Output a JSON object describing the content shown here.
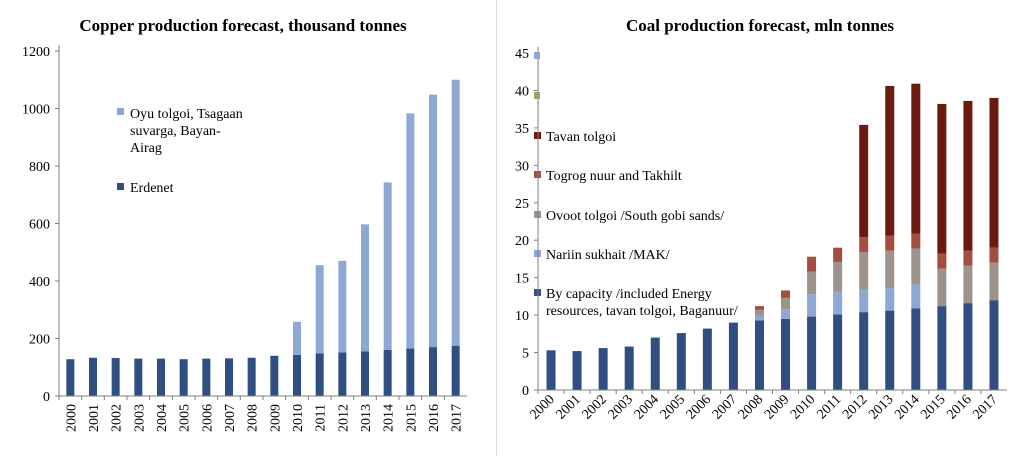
{
  "chart_data": [
    {
      "type": "bar",
      "stacked": true,
      "title": "Copper production forecast, thousand tonnes",
      "categories": [
        "2000",
        "2001",
        "2002",
        "2003",
        "2004",
        "2005",
        "2006",
        "2007",
        "2008",
        "2009",
        "2010",
        "2011",
        "2012",
        "2013",
        "2014",
        "2015",
        "2016",
        "2017"
      ],
      "ylim": [
        0,
        1200
      ],
      "yticks": [
        "0",
        "200",
        "400",
        "600",
        "800",
        "1000",
        "1200"
      ],
      "legend_position": "upper-left inside",
      "series": [
        {
          "name": "Erdenet",
          "color": "#2F4F80",
          "values": [
            128,
            133,
            132,
            130,
            130,
            128,
            130,
            131,
            133,
            140,
            143,
            148,
            152,
            155,
            160,
            165,
            170,
            175
          ]
        },
        {
          "name": "Oyu tolgoi, Tsagaan suvarga, Bayan-Airag",
          "color": "#8DA9D3",
          "values": [
            0,
            0,
            0,
            0,
            0,
            0,
            0,
            0,
            0,
            0,
            115,
            307,
            318,
            442,
            583,
            818,
            878,
            925
          ]
        }
      ],
      "legend_order": [
        1,
        0
      ]
    },
    {
      "type": "bar",
      "stacked": true,
      "title": "Coal production forecast, mln tonnes",
      "categories": [
        "2000",
        "2001",
        "2002",
        "2003",
        "2004",
        "2005",
        "2006",
        "2007",
        "2008",
        "2009",
        "2010",
        "2011",
        "2012",
        "2013",
        "2014",
        "2015",
        "2016",
        "2017"
      ],
      "ylim": [
        0,
        45
      ],
      "yticks": [
        "0",
        "5",
        "10",
        "15",
        "20",
        "25",
        "30",
        "35",
        "40",
        "45"
      ],
      "legend_position": "left inside",
      "series": [
        {
          "name": "By capacity /included Energy resources, tavan tolgoi, Baganuur/",
          "color": "#2F4F80",
          "values": [
            5.3,
            5.2,
            5.6,
            5.8,
            7.0,
            7.6,
            8.2,
            9.0,
            9.3,
            9.5,
            9.8,
            10.1,
            10.4,
            10.6,
            10.9,
            11.2,
            11.6,
            12.0
          ]
        },
        {
          "name": "Nariin sukhait /MAK/",
          "color": "#8DA9D3",
          "values": [
            0,
            0,
            0,
            0,
            0,
            0,
            0,
            0,
            0.6,
            1.3,
            3.0,
            3.0,
            3.0,
            3.0,
            3.2,
            0,
            0,
            0
          ]
        },
        {
          "name": "Ovoot tolgoi /South gobi sands/",
          "color": "#9C948C",
          "values": [
            0,
            0,
            0,
            0,
            0,
            0,
            0,
            0,
            0.8,
            1.5,
            3.0,
            4.0,
            5.0,
            5.0,
            4.8,
            5.0,
            5.0,
            5.0
          ]
        },
        {
          "name": "Togrog nuur and Takhilt",
          "color": "#A34E3F",
          "values": [
            0,
            0,
            0,
            0,
            0,
            0,
            0,
            0,
            0.5,
            1.0,
            2.0,
            1.9,
            2.0,
            2.0,
            2.0,
            2.0,
            2.0,
            2.0
          ]
        },
        {
          "name": "Tavan tolgoi",
          "color": "#6B1A0E",
          "values": [
            0,
            0,
            0,
            0,
            0,
            0,
            0,
            0,
            0,
            0,
            0,
            0,
            15.0,
            20.0,
            20.0,
            20.0,
            20.0,
            20.0
          ]
        }
      ],
      "legend_order": [
        4,
        3,
        2,
        1,
        0
      ]
    }
  ]
}
